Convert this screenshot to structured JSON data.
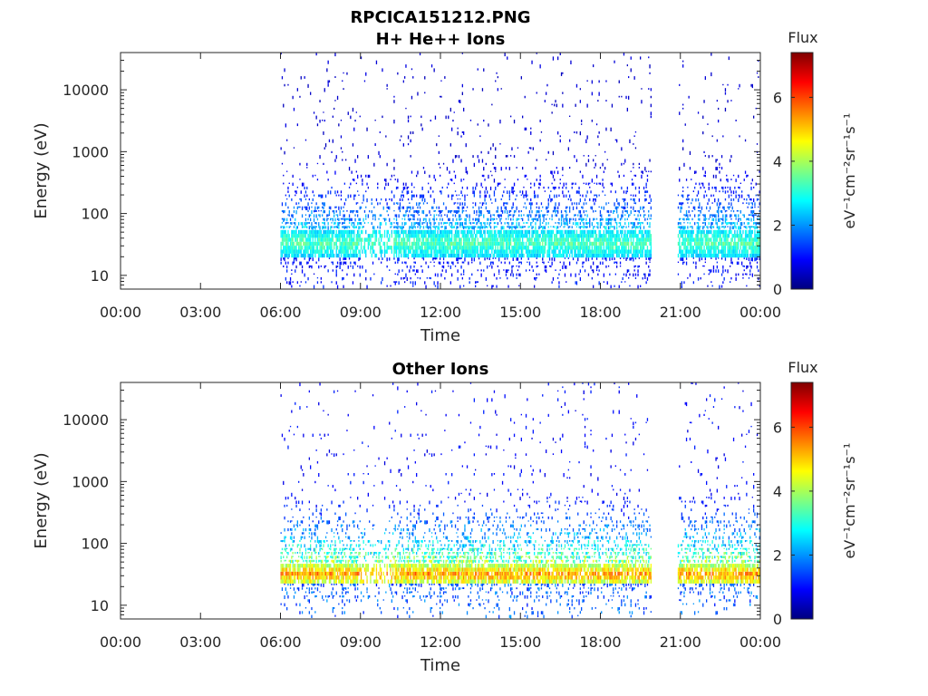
{
  "figure": {
    "title_line1": "RPCICA151212.PNG"
  },
  "chart_data": [
    {
      "type": "heatmap",
      "title": "H+ He++ Ions",
      "xlabel": "Time",
      "ylabel": "Energy (eV)",
      "x_ticks": [
        "00:00",
        "03:00",
        "06:00",
        "09:00",
        "12:00",
        "15:00",
        "18:00",
        "21:00",
        "00:00"
      ],
      "x_range_hours": [
        0,
        24
      ],
      "y_scale": "log",
      "y_ticks": [
        "10",
        "100",
        "1000",
        "10000"
      ],
      "y_range_eV": [
        6,
        40000
      ],
      "data_intervals_hours": [
        [
          6.0,
          19.9
        ],
        [
          20.9,
          24.0
        ]
      ],
      "core_band_eV": [
        20,
        55
      ],
      "peak_flux": 3.8,
      "colorbar": {
        "title": "Flux",
        "label": "eV⁻¹cm⁻²sr⁻¹s⁻¹",
        "range": [
          0,
          7.4
        ],
        "ticks": [
          "0",
          "2",
          "4",
          "6"
        ],
        "colormap": "jet"
      },
      "grid": false
    },
    {
      "type": "heatmap",
      "title": "Other Ions",
      "xlabel": "Time",
      "ylabel": "Energy (eV)",
      "x_ticks": [
        "00:00",
        "03:00",
        "06:00",
        "09:00",
        "12:00",
        "15:00",
        "18:00",
        "21:00",
        "00:00"
      ],
      "x_range_hours": [
        0,
        24
      ],
      "y_scale": "log",
      "y_ticks": [
        "10",
        "100",
        "1000",
        "10000"
      ],
      "y_range_eV": [
        6,
        40000
      ],
      "data_intervals_hours": [
        [
          6.0,
          19.9
        ],
        [
          20.9,
          24.0
        ]
      ],
      "core_band_eV": [
        22,
        45
      ],
      "peak_flux": 6.1,
      "colorbar": {
        "title": "Flux",
        "label": "eV⁻¹cm⁻²sr⁻¹s⁻¹",
        "range": [
          0,
          7.4
        ],
        "ticks": [
          "0",
          "2",
          "4",
          "6"
        ],
        "colormap": "jet"
      },
      "grid": false
    }
  ]
}
